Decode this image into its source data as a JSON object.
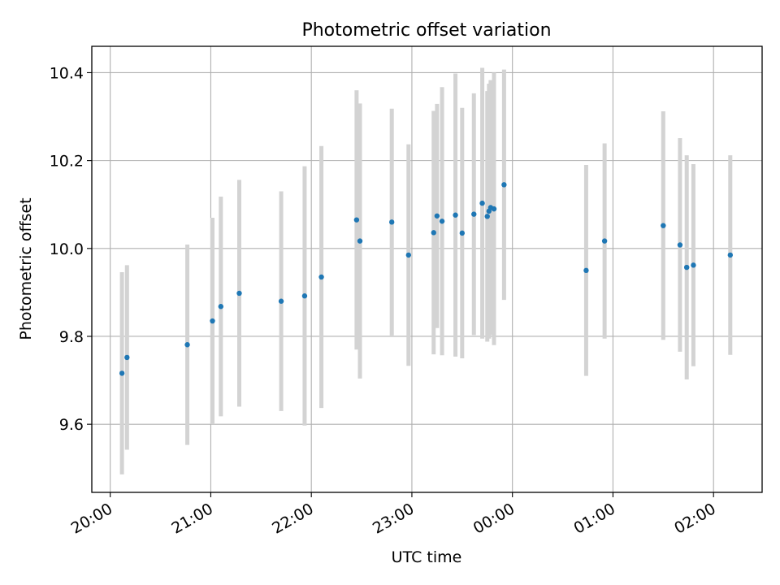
{
  "chart_data": {
    "type": "scatter",
    "title": "Photometric offset variation",
    "xlabel": "UTC time",
    "ylabel": "Photometric offset",
    "grid": true,
    "colors": {
      "points": "#1f77b4",
      "errorbars": "#d3d3d3"
    },
    "xlim": [
      "19:49",
      "02:29"
    ],
    "ylim": [
      9.445,
      10.46
    ],
    "xticks": [
      "20:00",
      "21:00",
      "22:00",
      "23:00",
      "00:00",
      "01:00",
      "02:00"
    ],
    "yticks": [
      9.6,
      9.8,
      10.0,
      10.2,
      10.4
    ],
    "points": [
      {
        "x": "20:07",
        "y": 9.716,
        "err": 0.23
      },
      {
        "x": "20:10",
        "y": 9.752,
        "err": 0.21
      },
      {
        "x": "20:46",
        "y": 9.781,
        "err": 0.228
      },
      {
        "x": "21:01",
        "y": 9.835,
        "err": 0.235
      },
      {
        "x": "21:06",
        "y": 9.868,
        "err": 0.25
      },
      {
        "x": "21:17",
        "y": 9.898,
        "err": 0.258
      },
      {
        "x": "21:42",
        "y": 9.88,
        "err": 0.25
      },
      {
        "x": "21:56",
        "y": 9.892,
        "err": 0.295
      },
      {
        "x": "22:06",
        "y": 9.935,
        "err": 0.298
      },
      {
        "x": "22:27",
        "y": 10.065,
        "err": 0.295
      },
      {
        "x": "22:29",
        "y": 10.017,
        "err": 0.313
      },
      {
        "x": "22:48",
        "y": 10.06,
        "err": 0.258
      },
      {
        "x": "22:58",
        "y": 9.985,
        "err": 0.252
      },
      {
        "x": "23:13",
        "y": 10.036,
        "err": 0.277
      },
      {
        "x": "23:15",
        "y": 10.074,
        "err": 0.255
      },
      {
        "x": "23:18",
        "y": 10.062,
        "err": 0.305
      },
      {
        "x": "23:26",
        "y": 10.076,
        "err": 0.322
      },
      {
        "x": "23:30",
        "y": 10.035,
        "err": 0.285
      },
      {
        "x": "23:37",
        "y": 10.078,
        "err": 0.275
      },
      {
        "x": "23:42",
        "y": 10.103,
        "err": 0.308
      },
      {
        "x": "23:45",
        "y": 10.073,
        "err": 0.285
      },
      {
        "x": "23:46",
        "y": 10.085,
        "err": 0.29
      },
      {
        "x": "23:47",
        "y": 10.093,
        "err": 0.29
      },
      {
        "x": "23:49",
        "y": 10.09,
        "err": 0.31
      },
      {
        "x": "23:55",
        "y": 10.145,
        "err": 0.262
      },
      {
        "x": "00:44",
        "y": 9.95,
        "err": 0.24
      },
      {
        "x": "00:55",
        "y": 10.017,
        "err": 0.222
      },
      {
        "x": "01:30",
        "y": 10.052,
        "err": 0.26
      },
      {
        "x": "01:40",
        "y": 10.008,
        "err": 0.243
      },
      {
        "x": "01:44",
        "y": 9.957,
        "err": 0.255
      },
      {
        "x": "01:48",
        "y": 9.962,
        "err": 0.23
      },
      {
        "x": "02:10",
        "y": 9.985,
        "err": 0.227
      }
    ]
  }
}
